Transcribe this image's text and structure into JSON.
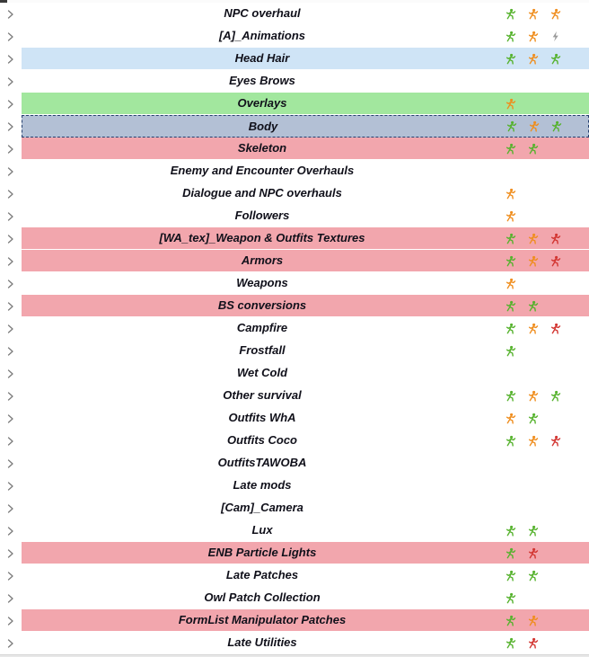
{
  "colors": {
    "row_white": "#ffffff",
    "row_blue": "#cfe4f6",
    "row_green": "#a2e79e",
    "row_pink": "#f2a6ad",
    "row_selected_bg": "#b3c0d5",
    "row_selected_border": "#26406f",
    "label_text": "#10101a",
    "chevron": "#7a7a7a"
  },
  "icons": {
    "colors": {
      "runner-green": "#55b22c",
      "runner-orange": "#ef8d1d",
      "runner-red": "#d23430",
      "flash-gray": "#9b9b9b"
    }
  },
  "list": {
    "rows": [
      {
        "label": "NPC overhaul",
        "bg": "white",
        "selected": false,
        "icons": [
          "runner-green",
          "runner-orange",
          "runner-orange"
        ]
      },
      {
        "label": "[A]_Animations",
        "bg": "white",
        "selected": false,
        "icons": [
          "runner-green",
          "runner-orange",
          "flash-gray"
        ]
      },
      {
        "label": "Head Hair",
        "bg": "blue",
        "selected": false,
        "icons": [
          "runner-green",
          "runner-orange",
          "runner-green"
        ]
      },
      {
        "label": "Eyes Brows",
        "bg": "white",
        "selected": false,
        "icons": []
      },
      {
        "label": "Overlays",
        "bg": "green",
        "selected": false,
        "icons": [
          "runner-orange"
        ]
      },
      {
        "label": "Body",
        "bg": "white",
        "selected": true,
        "icons": [
          "runner-green",
          "runner-orange",
          "runner-green"
        ]
      },
      {
        "label": "Skeleton",
        "bg": "pink",
        "selected": false,
        "icons": [
          "runner-green",
          "runner-green"
        ]
      },
      {
        "label": "Enemy and Encounter Overhauls",
        "bg": "white",
        "selected": false,
        "icons": []
      },
      {
        "label": "Dialogue and NPC overhauls",
        "bg": "white",
        "selected": false,
        "icons": [
          "runner-orange"
        ]
      },
      {
        "label": "Followers",
        "bg": "white",
        "selected": false,
        "icons": [
          "runner-orange"
        ]
      },
      {
        "label": "[WA_tex]_Weapon & Outfits Textures",
        "bg": "pink",
        "selected": false,
        "icons": [
          "runner-green",
          "runner-orange",
          "runner-red"
        ]
      },
      {
        "label": "Armors",
        "bg": "pink",
        "selected": false,
        "icons": [
          "runner-green",
          "runner-orange",
          "runner-red"
        ]
      },
      {
        "label": "Weapons",
        "bg": "white",
        "selected": false,
        "icons": [
          "runner-orange"
        ]
      },
      {
        "label": "BS conversions",
        "bg": "pink",
        "selected": false,
        "icons": [
          "runner-green",
          "runner-green"
        ]
      },
      {
        "label": "Campfire",
        "bg": "white",
        "selected": false,
        "icons": [
          "runner-green",
          "runner-orange",
          "runner-red"
        ]
      },
      {
        "label": "Frostfall",
        "bg": "white",
        "selected": false,
        "icons": [
          "runner-green"
        ]
      },
      {
        "label": "Wet Cold",
        "bg": "white",
        "selected": false,
        "icons": []
      },
      {
        "label": "Other survival",
        "bg": "white",
        "selected": false,
        "icons": [
          "runner-green",
          "runner-orange",
          "runner-green"
        ]
      },
      {
        "label": "Outfits WhA",
        "bg": "white",
        "selected": false,
        "icons": [
          "runner-orange",
          "runner-green"
        ]
      },
      {
        "label": "Outfits Coco",
        "bg": "white",
        "selected": false,
        "icons": [
          "runner-green",
          "runner-orange",
          "runner-red"
        ]
      },
      {
        "label": "OutfitsTAWOBA",
        "bg": "white",
        "selected": false,
        "icons": []
      },
      {
        "label": "Late mods",
        "bg": "white",
        "selected": false,
        "icons": []
      },
      {
        "label": "[Cam]_Camera",
        "bg": "white",
        "selected": false,
        "icons": []
      },
      {
        "label": "Lux",
        "bg": "white",
        "selected": false,
        "icons": [
          "runner-green",
          "runner-green"
        ]
      },
      {
        "label": "ENB Particle Lights",
        "bg": "pink",
        "selected": false,
        "icons": [
          "runner-green",
          "runner-red"
        ]
      },
      {
        "label": "Late Patches",
        "bg": "white",
        "selected": false,
        "icons": [
          "runner-green",
          "runner-green"
        ]
      },
      {
        "label": "Owl Patch Collection",
        "bg": "white",
        "selected": false,
        "icons": [
          "runner-green"
        ]
      },
      {
        "label": "FormList Manipulator Patches",
        "bg": "pink",
        "selected": false,
        "icons": [
          "runner-green",
          "runner-orange"
        ]
      },
      {
        "label": "Late Utilities",
        "bg": "white",
        "selected": false,
        "icons": [
          "runner-green",
          "runner-red"
        ]
      }
    ]
  }
}
